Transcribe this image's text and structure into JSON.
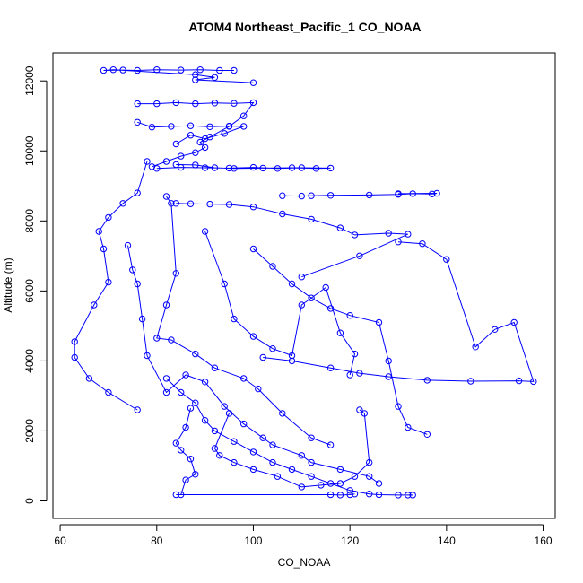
{
  "chart_data": {
    "type": "line",
    "title": "ATOM4 Northeast_Pacific_1 CO_NOAA",
    "xlabel": "CO_NOAA",
    "ylabel": "Altitude (m)",
    "xlim": [
      58.5,
      162.5
    ],
    "ylim": [
      -500,
      12800
    ],
    "xticks": [
      60,
      80,
      100,
      120,
      140,
      160
    ],
    "yticks": [
      0,
      2000,
      4000,
      6000,
      8000,
      10000,
      12000
    ],
    "grid": false,
    "legend": "none",
    "series_color": "#0000ff",
    "series": [
      {
        "x": [
          96,
          93,
          89,
          85,
          80,
          76,
          73,
          69,
          71,
          88,
          92,
          88,
          100
        ],
        "y": [
          12300,
          12300,
          12320,
          12310,
          12320,
          12300,
          12310,
          12300,
          12320,
          12180,
          12100,
          12030,
          11950
        ]
      },
      {
        "x": [
          76,
          80,
          84,
          88,
          92,
          96,
          100,
          98,
          95,
          91,
          89,
          90,
          88,
          85,
          82,
          79
        ],
        "y": [
          11350,
          11350,
          11380,
          11350,
          11370,
          11360,
          11380,
          11000,
          10700,
          10400,
          10250,
          10100,
          9950,
          9850,
          9700,
          9550
        ]
      },
      {
        "x": [
          76,
          79,
          83,
          87,
          91,
          95,
          98,
          94,
          90,
          87,
          84
        ],
        "y": [
          10820,
          10680,
          10700,
          10720,
          10690,
          10710,
          10700,
          10500,
          10350,
          10450,
          10200
        ]
      },
      {
        "x": [
          80,
          85,
          90,
          95,
          100,
          105,
          110,
          116,
          113,
          108,
          102,
          96,
          92,
          88,
          84
        ],
        "y": [
          9500,
          9530,
          9520,
          9510,
          9530,
          9500,
          9520,
          9510,
          9500,
          9520,
          9510,
          9500,
          9520,
          9600,
          9610
        ]
      },
      {
        "x": [
          106,
          110,
          112,
          116,
          124,
          130,
          133,
          137,
          138,
          130
        ],
        "y": [
          8720,
          8710,
          8720,
          8730,
          8740,
          8760,
          8780,
          8770,
          8790,
          8780
        ]
      },
      {
        "x": [
          84,
          87,
          91,
          95,
          100,
          106,
          112,
          118,
          121,
          128,
          132,
          122,
          110
        ],
        "y": [
          8500,
          8490,
          8480,
          8470,
          8400,
          8200,
          8050,
          7800,
          7600,
          7650,
          7620,
          7000,
          6400
        ]
      },
      {
        "x": [
          78,
          76,
          73,
          70,
          68,
          69,
          70,
          67,
          63,
          63,
          66,
          70,
          76
        ],
        "y": [
          9700,
          8800,
          8500,
          8100,
          7700,
          7200,
          6250,
          5600,
          4550,
          4100,
          3500,
          3100,
          2600
        ]
      },
      {
        "x": [
          82,
          83,
          84,
          82,
          80,
          83,
          88,
          92,
          98,
          101,
          106,
          112,
          116
        ],
        "y": [
          8700,
          8500,
          6500,
          5600,
          4650,
          4600,
          4200,
          3800,
          3500,
          3200,
          2500,
          1800,
          1600
        ]
      },
      {
        "x": [
          74,
          75,
          76,
          77,
          78,
          82,
          86,
          90,
          94,
          98,
          102,
          104,
          110,
          112,
          118,
          124,
          126
        ],
        "y": [
          7300,
          6600,
          6200,
          5200,
          4150,
          3100,
          3600,
          3400,
          2700,
          2200,
          1800,
          1600,
          1300,
          1100,
          900,
          700,
          500
        ]
      },
      {
        "x": [
          90,
          94,
          96,
          100,
          104,
          108,
          110,
          115,
          118,
          121,
          120
        ],
        "y": [
          7700,
          6200,
          5200,
          4700,
          4350,
          4150,
          5600,
          6100,
          4800,
          4200,
          3600
        ]
      },
      {
        "x": [
          100,
          104,
          108,
          112,
          116,
          120,
          126,
          128,
          130,
          132,
          136
        ],
        "y": [
          7200,
          6700,
          6200,
          5800,
          5500,
          5300,
          5100,
          4000,
          2700,
          2100,
          1900
        ]
      },
      {
        "x": [
          102,
          108,
          116,
          122,
          128,
          136,
          145,
          155,
          158,
          154,
          150,
          146,
          140,
          135,
          130
        ],
        "y": [
          4100,
          4000,
          3800,
          3650,
          3550,
          3450,
          3420,
          3430,
          3410,
          5100,
          4900,
          4400,
          6900,
          7350,
          7400
        ]
      },
      {
        "x": [
          82,
          85,
          88,
          90,
          92,
          96,
          100,
          104,
          108,
          112,
          116,
          120,
          124,
          126,
          130,
          132,
          133
        ],
        "y": [
          3500,
          3100,
          2800,
          2300,
          2000,
          1700,
          1400,
          1100,
          900,
          700,
          500,
          300,
          200,
          180,
          170,
          170,
          170
        ]
      },
      {
        "x": [
          87,
          86,
          84,
          85,
          87,
          88,
          86,
          85,
          84,
          116,
          118,
          120,
          121
        ],
        "y": [
          2650,
          2100,
          1650,
          1450,
          1200,
          760,
          600,
          180,
          180,
          180,
          170,
          180,
          200
        ]
      },
      {
        "x": [
          122,
          123,
          124,
          121,
          118,
          114,
          110,
          105,
          100,
          96,
          93,
          92,
          95
        ],
        "y": [
          2600,
          2500,
          1100,
          700,
          500,
          450,
          400,
          700,
          900,
          1100,
          1300,
          1500,
          2500
        ]
      }
    ]
  }
}
